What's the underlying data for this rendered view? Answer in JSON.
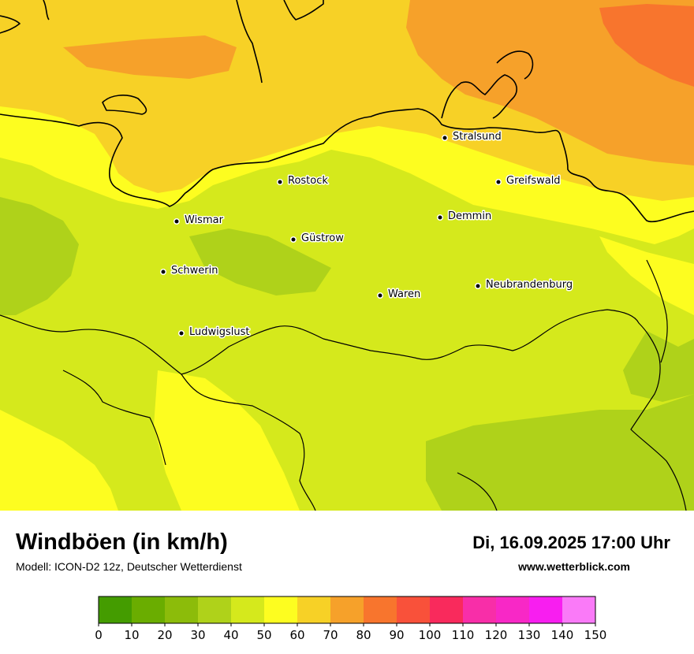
{
  "header": {
    "title": "Windböen (in km/h)",
    "model": "Modell: ICON-D2 12z, Deutscher Wetterdienst",
    "datetime": "Di, 16.09.2025 17:00 Uhr",
    "website": "www.wetterblick.com"
  },
  "colors": {
    "c0": "#449c00",
    "c10": "#6aad00",
    "c20": "#8cbc0a",
    "c30": "#afd21a",
    "c40": "#d5e91c",
    "c50": "#fdfd20",
    "c60": "#f7d126",
    "c70": "#f6a12a",
    "c80": "#f8752d",
    "c90": "#f9513a",
    "c100": "#f92a5c",
    "c110": "#f82ea8",
    "c120": "#f828c6",
    "c130": "#f81ef0",
    "c140": "#fa7af8"
  },
  "cities": [
    {
      "name": "Stralsund"
    },
    {
      "name": "Rostock"
    },
    {
      "name": "Greifswald"
    },
    {
      "name": "Wismar"
    },
    {
      "name": "Demmin"
    },
    {
      "name": "Güstrow"
    },
    {
      "name": "Schwerin"
    },
    {
      "name": "Neubrandenburg"
    },
    {
      "name": "Waren"
    },
    {
      "name": "Ludwigslust"
    }
  ],
  "legend": {
    "ticks": [
      "0",
      "10",
      "20",
      "30",
      "40",
      "50",
      "60",
      "70",
      "80",
      "90",
      "100",
      "110",
      "120",
      "130",
      "140",
      "150"
    ],
    "bins": [
      {
        "from": 0,
        "to": 10,
        "color": "#449c00"
      },
      {
        "from": 10,
        "to": 20,
        "color": "#6aad00"
      },
      {
        "from": 20,
        "to": 30,
        "color": "#8cbc0a"
      },
      {
        "from": 30,
        "to": 40,
        "color": "#afd21a"
      },
      {
        "from": 40,
        "to": 50,
        "color": "#d5e91c"
      },
      {
        "from": 50,
        "to": 60,
        "color": "#fdfd20"
      },
      {
        "from": 60,
        "to": 70,
        "color": "#f7d126"
      },
      {
        "from": 70,
        "to": 80,
        "color": "#f6a12a"
      },
      {
        "from": 80,
        "to": 90,
        "color": "#f8752d"
      },
      {
        "from": 90,
        "to": 100,
        "color": "#f9513a"
      },
      {
        "from": 100,
        "to": 110,
        "color": "#f92a5c"
      },
      {
        "from": 110,
        "to": 120,
        "color": "#f82ea8"
      },
      {
        "from": 120,
        "to": 130,
        "color": "#f828c6"
      },
      {
        "from": 130,
        "to": 140,
        "color": "#f81ef0"
      },
      {
        "from": 140,
        "to": 150,
        "color": "#fa7af8"
      }
    ]
  }
}
